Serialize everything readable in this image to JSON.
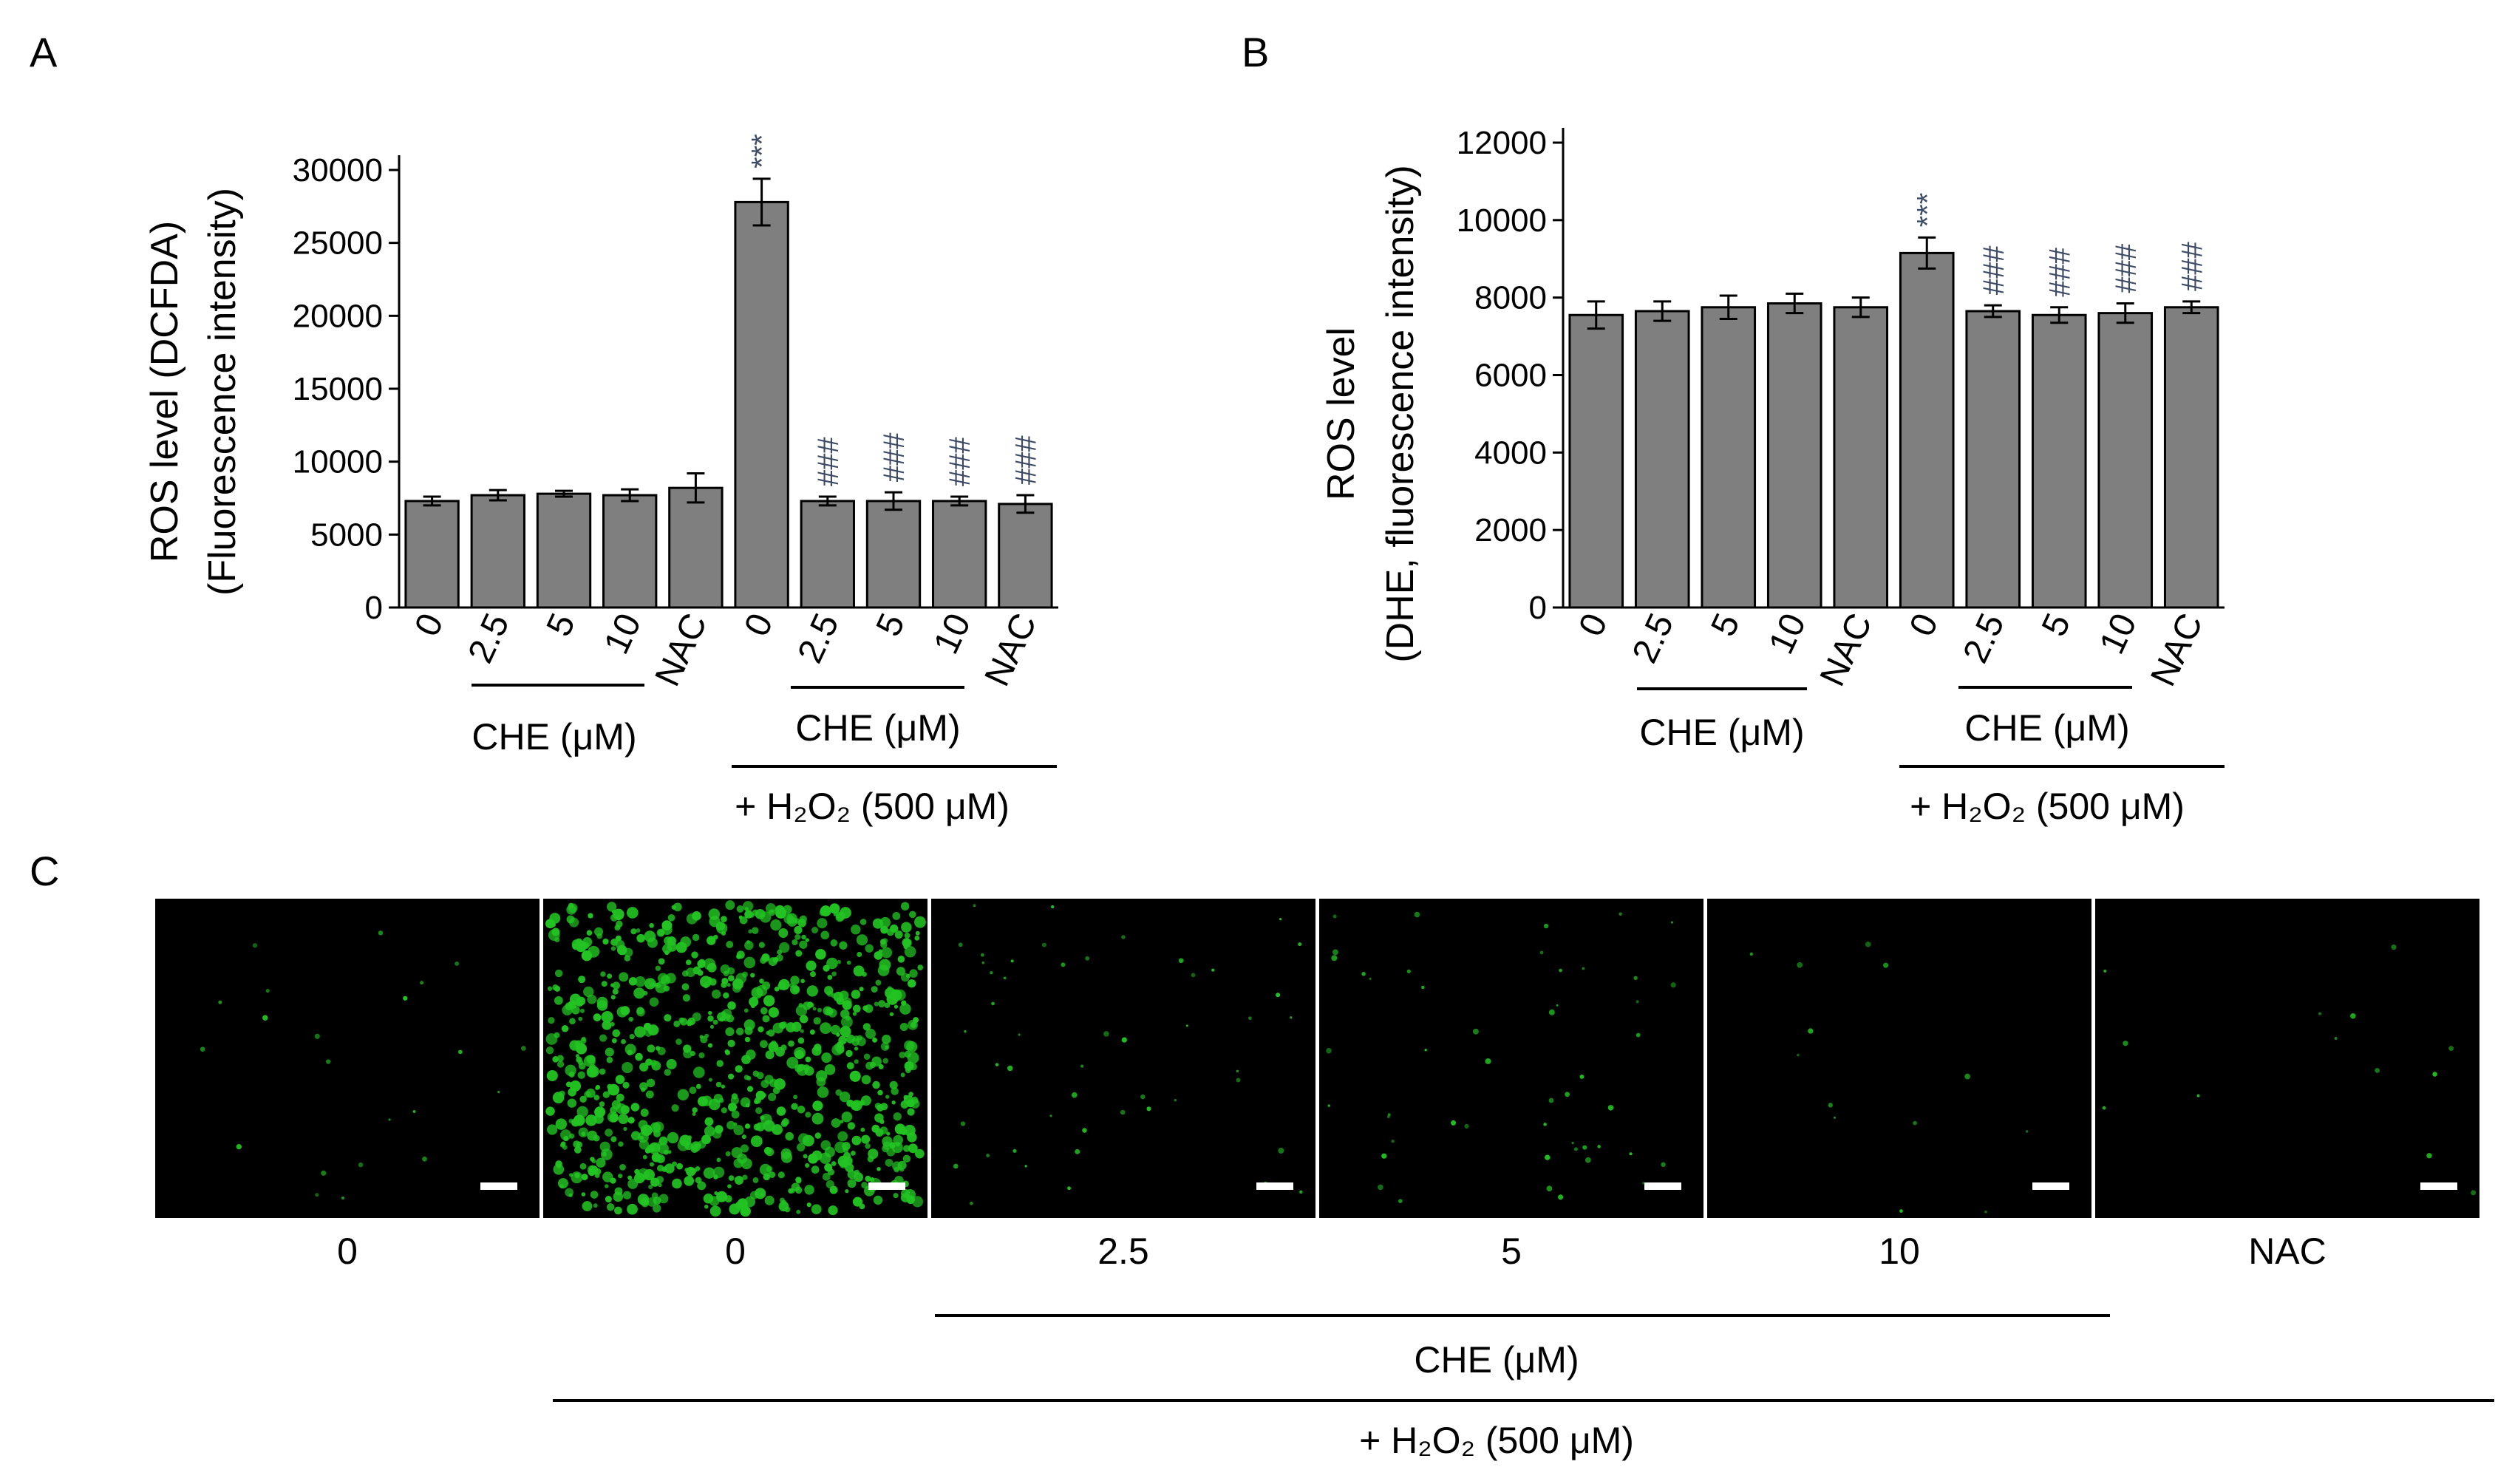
{
  "panel_labels": [
    "A",
    "B",
    "C"
  ],
  "chart_data": [
    {
      "type": "bar",
      "panel": "A",
      "ylabel_line1": "ROS level (DCFDA)",
      "ylabel_line2": "(Fluorescence intensity)",
      "ylim": [
        0,
        30000
      ],
      "yticks": [
        0,
        5000,
        10000,
        15000,
        20000,
        25000,
        30000
      ],
      "categories": [
        "0",
        "2.5",
        "5",
        "10",
        "NAC",
        "0",
        "2.5",
        "5",
        "10",
        "NAC"
      ],
      "values": [
        7300,
        7700,
        7800,
        7700,
        8200,
        27800,
        7300,
        7300,
        7300,
        7100
      ],
      "errors": [
        300,
        350,
        200,
        400,
        1000,
        1600,
        300,
        600,
        300,
        600
      ],
      "annotations": [
        "",
        "",
        "",
        "",
        "",
        "***",
        "###",
        "###",
        "###",
        "###"
      ],
      "bar_color": "#7f7f7f",
      "group_labels": [
        "CHE (μM)",
        "CHE (μM)"
      ],
      "treatment_label": "+ H₂O₂ (500 μM)"
    },
    {
      "type": "bar",
      "panel": "B",
      "ylabel_line1": "ROS level",
      "ylabel_line2": "(DHE,  fluorescence intensity)",
      "ylim": [
        0,
        12000
      ],
      "yticks": [
        0,
        2000,
        4000,
        6000,
        8000,
        10000,
        12000
      ],
      "categories": [
        "0",
        "2.5",
        "5",
        "10",
        "NAC",
        "0",
        "2.5",
        "5",
        "10",
        "NAC"
      ],
      "values": [
        7550,
        7650,
        7750,
        7850,
        7750,
        9150,
        7650,
        7550,
        7600,
        7750
      ],
      "errors": [
        350,
        250,
        300,
        250,
        250,
        400,
        150,
        200,
        250,
        150
      ],
      "annotations": [
        "",
        "",
        "",
        "",
        "",
        "***",
        "###",
        "###",
        "###",
        "###"
      ],
      "bar_color": "#7f7f7f",
      "group_labels": [
        "CHE (μM)",
        "CHE (μM)"
      ],
      "treatment_label": "+ H₂O₂ (500 μM)"
    }
  ],
  "images_panel": {
    "labels": [
      "0",
      "0",
      "2.5",
      "5",
      "10",
      "NAC"
    ],
    "green_density": [
      0.02,
      1.0,
      0.05,
      0.05,
      0.01,
      0.01
    ],
    "fluorescence_color": "#22c322",
    "group_label": "CHE (μM)",
    "treatment_label": "+ H₂O₂ (500 μM)"
  }
}
